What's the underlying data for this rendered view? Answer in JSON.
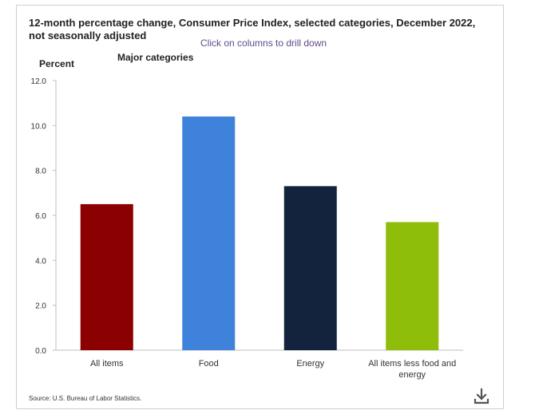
{
  "header": {
    "title": "12-month percentage change, Consumer Price Index, selected categories, December 2022, not seasonally adjusted",
    "subtitle": "Click on columns to drill down"
  },
  "footer": {
    "source": "Source: U.S. Bureau of Labor Statistics."
  },
  "icons": {
    "download": "download-icon"
  },
  "chart_data": {
    "type": "bar",
    "title": "12-month percentage change, Consumer Price Index, selected categories, December 2022, not seasonally adjusted",
    "subtitle": "Click on columns to drill down",
    "ylabel": "Percent",
    "xlabel": "Major categories",
    "ylim": [
      0,
      12
    ],
    "yticks": [
      0,
      2,
      4,
      6,
      8,
      10,
      12
    ],
    "grid": false,
    "legend": "none",
    "categories": [
      "All items",
      "Food",
      "Energy",
      "All items less food and energy"
    ],
    "category_lines": [
      [
        "All items"
      ],
      [
        "Food"
      ],
      [
        "Energy"
      ],
      [
        "All items less food and",
        "energy"
      ]
    ],
    "values": [
      6.5,
      10.4,
      7.3,
      5.7
    ],
    "colors": [
      "#8b0000",
      "#3f82db",
      "#13233d",
      "#8ebd0a"
    ]
  }
}
